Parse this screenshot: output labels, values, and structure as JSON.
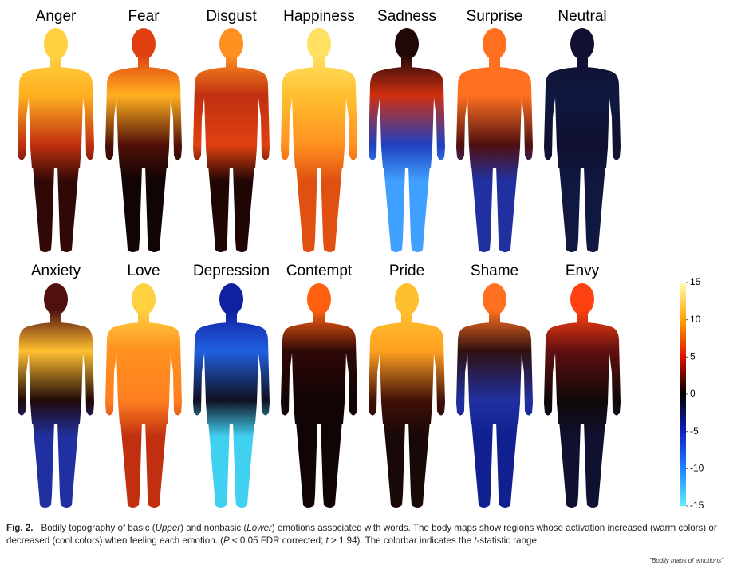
{
  "figures": {
    "row1": [
      "Anger",
      "Fear",
      "Disgust",
      "Happiness",
      "Sadness",
      "Surprise",
      "Neutral"
    ],
    "row2": [
      "Anxiety",
      "Love",
      "Depression",
      "Contempt",
      "Pride",
      "Shame",
      "Envy"
    ]
  },
  "colorbar": {
    "ticks": [
      15,
      10,
      5,
      0,
      -5,
      -10,
      -15
    ],
    "lim": [
      -15,
      15
    ]
  },
  "caption": {
    "label": "Fig. 2.",
    "parts": [
      "Bodily topography of basic (",
      "Upper",
      ") and nonbasic (",
      "Lower",
      ") emotions associated with words. The body maps show regions whose activation increased (warm colors) or decreased (cool colors) when feeling each emotion. (",
      "P",
      " < 0.05 FDR corrected; ",
      "t",
      " > 1.94). The colorbar indicates the ",
      "t",
      "-statistic range."
    ]
  },
  "footnote": "\"Bodily maps of emotions\""
}
